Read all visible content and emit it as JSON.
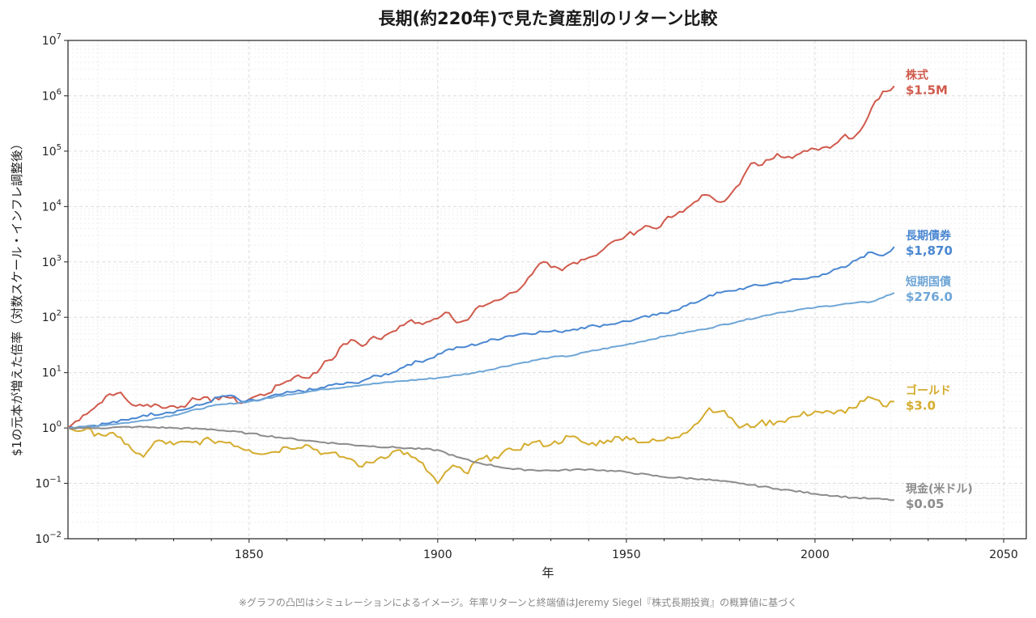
{
  "chart_data": {
    "type": "line",
    "title": "長期(約220年)で見た資産別のリターン比較",
    "xlabel": "年",
    "ylabel": "$1の元本が増えた倍率（対数スケール・インフレ調整後）",
    "xlim": [
      1802,
      2056
    ],
    "ylim": [
      0.01,
      10000000
    ],
    "y_scale": "log",
    "x_ticks": [
      1850,
      1900,
      1950,
      2000,
      2050
    ],
    "y_tick_base": "10",
    "y_tick_exponents": [
      "−2",
      "−1",
      "0",
      "1",
      "2",
      "3",
      "4",
      "5",
      "6",
      "7"
    ],
    "y_tick_values": [
      0.01,
      0.1,
      1,
      10,
      100,
      1000,
      10000,
      100000,
      1000000,
      10000000
    ],
    "grid": true,
    "legend": "none",
    "footnote": "※グラフの凸凹はシミュレーションによるイメージ。年率リターンと終端値はJeremy Siegel『株式長期投資』の概算値に基づく",
    "series": [
      {
        "name": "株式",
        "end_value": "$1.5M",
        "color": "#d05a4c",
        "x": [
          1802,
          1806,
          1809,
          1812,
          1814,
          1816,
          1818,
          1820,
          1822,
          1825,
          1828,
          1830,
          1833,
          1835,
          1838,
          1840,
          1843,
          1845,
          1848,
          1850,
          1852,
          1855,
          1858,
          1860,
          1863,
          1865,
          1868,
          1870,
          1873,
          1875,
          1878,
          1880,
          1883,
          1885,
          1888,
          1890,
          1893,
          1895,
          1898,
          1900,
          1903,
          1905,
          1908,
          1910,
          1913,
          1915,
          1918,
          1920,
          1923,
          1925,
          1928,
          1930,
          1933,
          1935,
          1938,
          1940,
          1943,
          1945,
          1948,
          1950,
          1953,
          1955,
          1958,
          1960,
          1963,
          1965,
          1968,
          1970,
          1973,
          1975,
          1978,
          1980,
          1983,
          1985,
          1988,
          1990,
          1993,
          1995,
          1998,
          2000,
          2003,
          2005,
          2008,
          2010,
          2013,
          2015,
          2018,
          2021
        ],
        "values": [
          1,
          1.7,
          2.3,
          3.7,
          3.9,
          4.4,
          3,
          2.5,
          2.5,
          2.7,
          2.3,
          2.5,
          2.4,
          3.5,
          3.6,
          3,
          3.8,
          3.5,
          2.8,
          3.3,
          3.8,
          4.2,
          6,
          7,
          9,
          8,
          10,
          16,
          20,
          33,
          38,
          30,
          45,
          40,
          55,
          70,
          90,
          80,
          85,
          95,
          120,
          80,
          90,
          140,
          170,
          200,
          240,
          280,
          400,
          600,
          1000,
          800,
          700,
          900,
          1100,
          1200,
          1500,
          2000,
          2500,
          3000,
          3600,
          4500,
          4000,
          5500,
          7000,
          8000,
          12000,
          16000,
          14000,
          12000,
          18000,
          25000,
          60000,
          55000,
          70000,
          90000,
          80000,
          85000,
          100000,
          110000,
          120000,
          130000,
          200000,
          170000,
          300000,
          600000,
          1200000,
          1500000
        ]
      },
      {
        "name": "長期債券",
        "end_value": "$1,870",
        "color": "#4a87d1",
        "x": [
          1802,
          1808,
          1812,
          1818,
          1822,
          1828,
          1832,
          1838,
          1842,
          1845,
          1848,
          1852,
          1858,
          1862,
          1868,
          1872,
          1878,
          1882,
          1888,
          1892,
          1898,
          1902,
          1908,
          1912,
          1918,
          1922,
          1928,
          1932,
          1938,
          1942,
          1948,
          1952,
          1958,
          1962,
          1968,
          1972,
          1978,
          1982,
          1988,
          1992,
          1998,
          2002,
          2008,
          2012,
          2015,
          2018,
          2021
        ],
        "values": [
          1,
          1.1,
          1.2,
          1.4,
          1.7,
          1.9,
          2.1,
          2.7,
          3.6,
          3.9,
          3,
          3.1,
          4,
          4.5,
          5,
          6,
          6.5,
          8,
          10,
          14,
          18,
          25,
          30,
          35,
          45,
          50,
          55,
          55,
          65,
          70,
          80,
          90,
          110,
          130,
          180,
          250,
          300,
          350,
          400,
          450,
          500,
          600,
          800,
          1200,
          1500,
          1300,
          1870
        ]
      },
      {
        "name": "短期国債",
        "end_value": "$276.0",
        "color": "#6fa6d6",
        "x": [
          1802,
          1810,
          1820,
          1830,
          1840,
          1850,
          1860,
          1870,
          1880,
          1890,
          1900,
          1910,
          1920,
          1930,
          1935,
          1940,
          1950,
          1960,
          1970,
          1980,
          1990,
          2000,
          2010,
          2015,
          2021
        ],
        "values": [
          1,
          1.1,
          1.3,
          1.7,
          2.5,
          3,
          4,
          5,
          6,
          7,
          8,
          10,
          14,
          19,
          20,
          24,
          32,
          45,
          60,
          85,
          120,
          150,
          180,
          190,
          276
        ]
      },
      {
        "name": "ゴールド",
        "end_value": "$3.0",
        "color": "#d4ac2e",
        "x": [
          1802,
          1806,
          1810,
          1815,
          1818,
          1820,
          1822,
          1824,
          1826,
          1830,
          1835,
          1840,
          1845,
          1850,
          1855,
          1860,
          1865,
          1870,
          1875,
          1878,
          1880,
          1885,
          1890,
          1893,
          1895,
          1898,
          1900,
          1903,
          1905,
          1908,
          1910,
          1915,
          1920,
          1925,
          1930,
          1935,
          1940,
          1945,
          1950,
          1955,
          1960,
          1965,
          1970,
          1972,
          1975,
          1978,
          1980,
          1985,
          1990,
          1995,
          2000,
          2005,
          2010,
          2015,
          2018,
          2021
        ],
        "values": [
          1,
          0.9,
          0.8,
          0.7,
          0.5,
          0.35,
          0.3,
          0.45,
          0.6,
          0.5,
          0.55,
          0.6,
          0.55,
          0.4,
          0.35,
          0.45,
          0.5,
          0.35,
          0.3,
          0.25,
          0.2,
          0.3,
          0.4,
          0.3,
          0.25,
          0.15,
          0.1,
          0.18,
          0.2,
          0.15,
          0.25,
          0.3,
          0.4,
          0.55,
          0.5,
          0.7,
          0.5,
          0.6,
          0.7,
          0.55,
          0.6,
          0.8,
          1.5,
          2.3,
          2,
          1.5,
          1,
          1.2,
          1.3,
          1.6,
          2,
          1.8,
          2.3,
          3.5,
          2.5,
          3
        ]
      },
      {
        "name": "現金(米ドル)",
        "end_value": "$0.05",
        "color": "#8c8c8c",
        "x": [
          1802,
          1810,
          1820,
          1830,
          1840,
          1850,
          1860,
          1870,
          1880,
          1890,
          1900,
          1905,
          1910,
          1920,
          1930,
          1940,
          1950,
          1960,
          1970,
          1980,
          1990,
          2000,
          2010,
          2015,
          2021
        ],
        "values": [
          1,
          1,
          1.05,
          1,
          0.95,
          0.8,
          0.65,
          0.55,
          0.48,
          0.44,
          0.4,
          0.3,
          0.24,
          0.18,
          0.17,
          0.18,
          0.16,
          0.13,
          0.12,
          0.1,
          0.08,
          0.065,
          0.055,
          0.053,
          0.05
        ]
      }
    ]
  }
}
